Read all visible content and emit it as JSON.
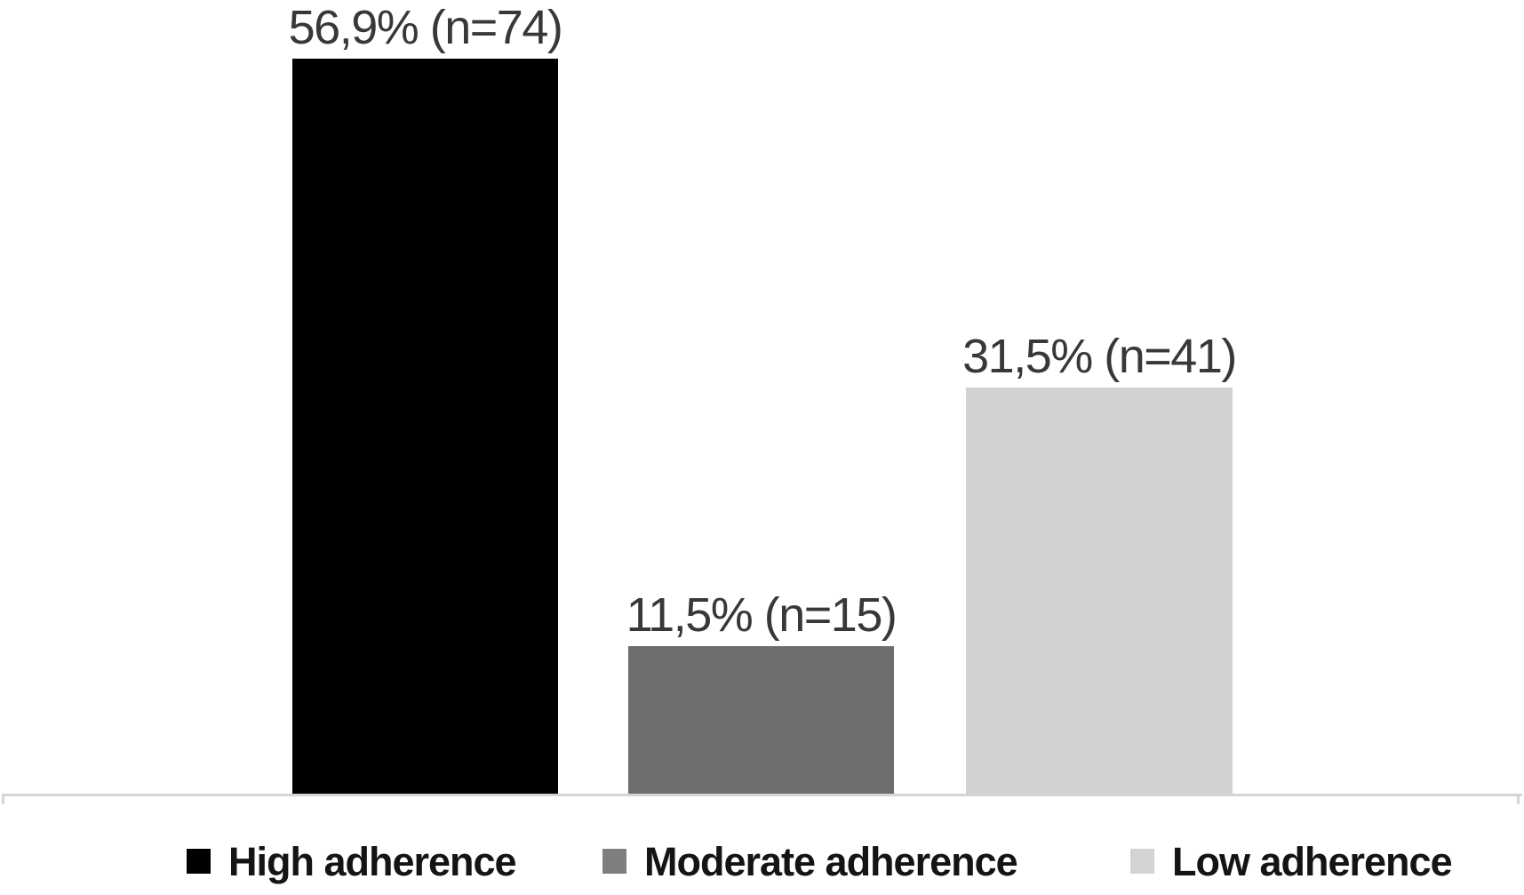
{
  "chart_data": {
    "type": "bar",
    "categories": [
      "High adherence",
      "Moderate adherence",
      "Low adherence"
    ],
    "values": [
      56.9,
      11.5,
      31.5
    ],
    "counts": [
      74,
      15,
      41
    ],
    "data_labels": [
      "56,9% (n=74)",
      "11,5% (n=15)",
      "31,5% (n=41)"
    ],
    "bar_colors": [
      "#010101",
      "#6e6e6e",
      "#d2d2d2"
    ],
    "title": "",
    "xlabel": "",
    "ylabel": "",
    "ylim": [
      0,
      60
    ],
    "grid": false,
    "legend_position": "bottom",
    "axis_color": "#d5d5d5",
    "label_text_color": "#383838"
  },
  "legend": {
    "items": [
      {
        "label": "High adherence",
        "color": "#010101"
      },
      {
        "label": "Moderate adherence",
        "color": "#7e7e7e"
      },
      {
        "label": "Low adherence",
        "color": "#d3d3d3"
      }
    ]
  }
}
